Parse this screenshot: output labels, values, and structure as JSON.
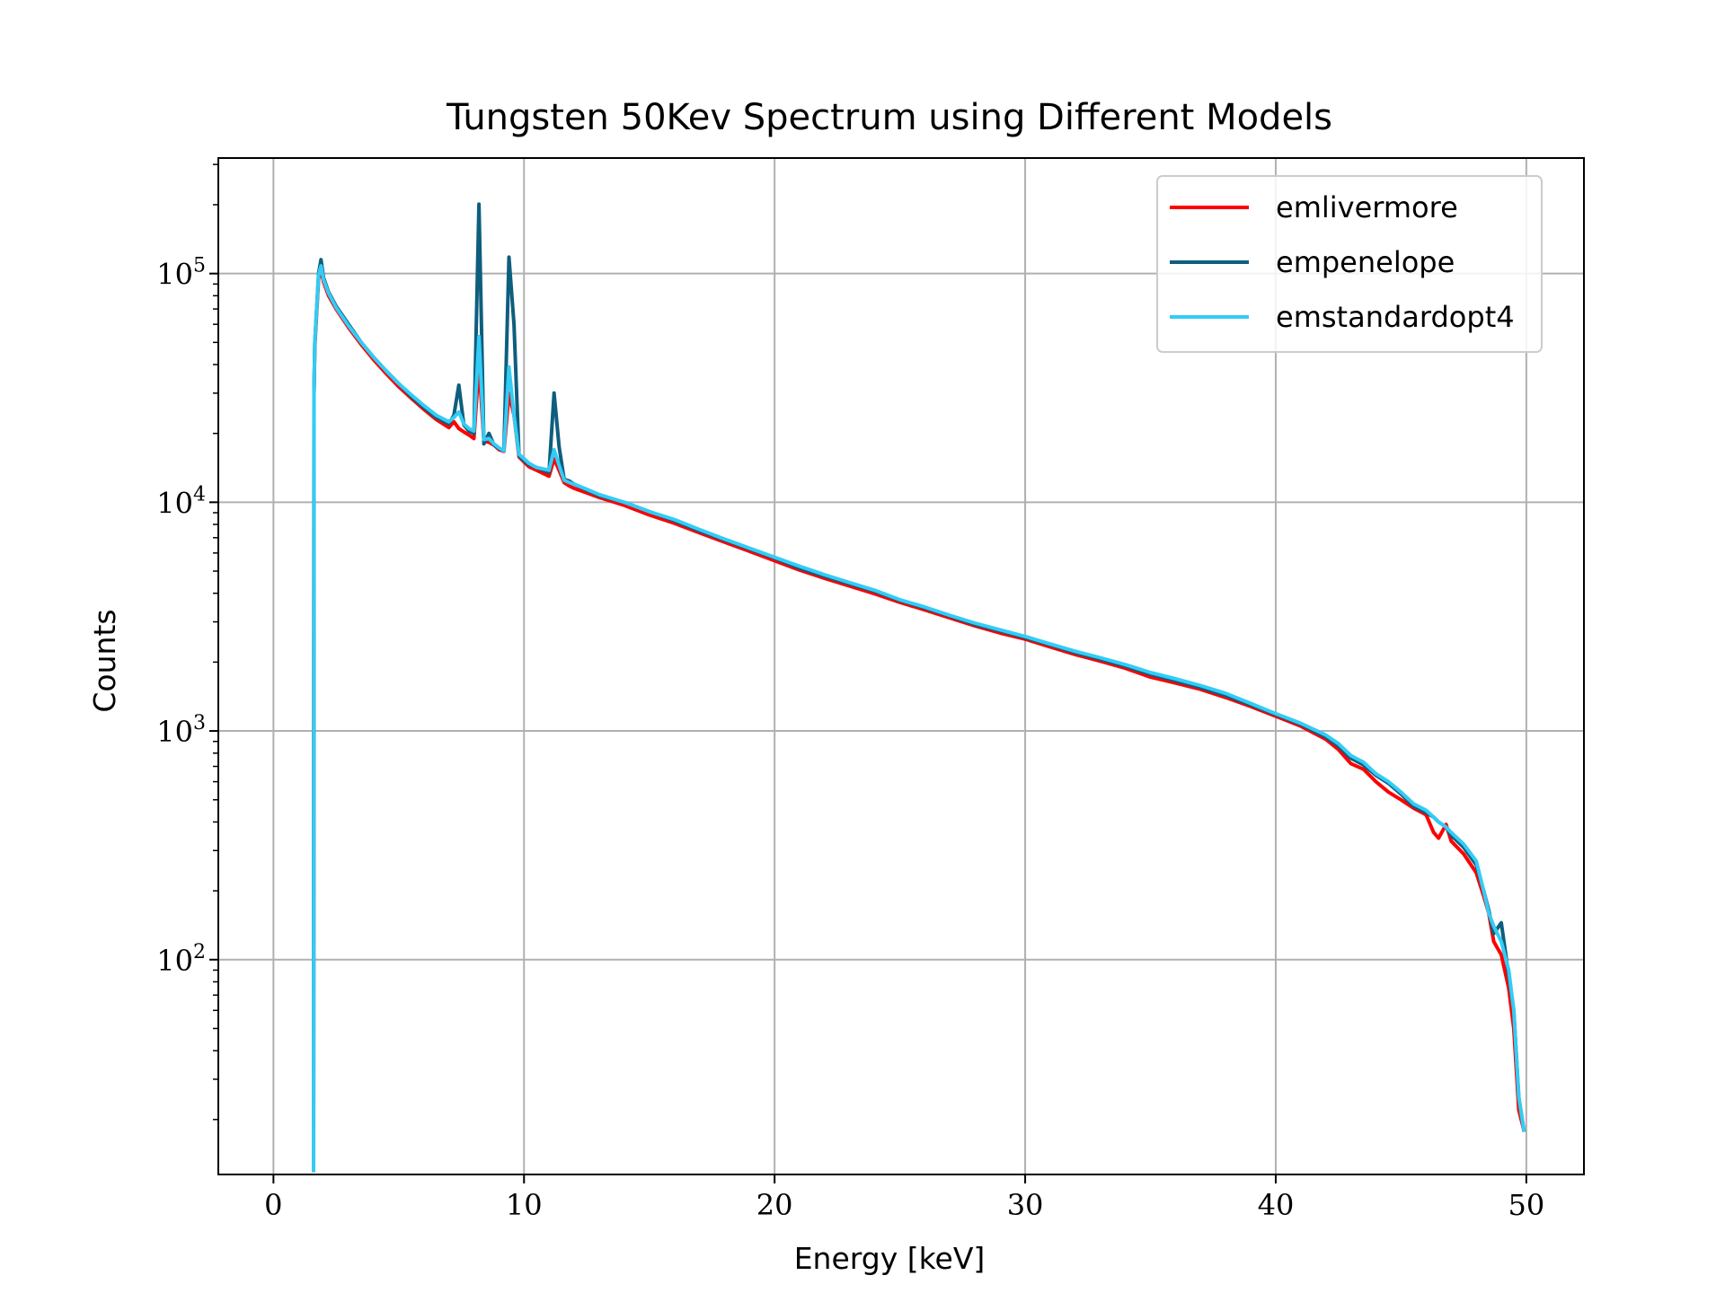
{
  "chart_data": {
    "type": "line",
    "title": "Tungsten 50Kev Spectrum using Different Models",
    "xlabel": "Energy [keV]",
    "ylabel": "Counts",
    "xscale": "linear",
    "yscale": "log",
    "xlim": [
      -2.2,
      52.3
    ],
    "ylim": [
      11.5,
      320000
    ],
    "xticks": [
      0,
      10,
      20,
      30,
      40,
      50
    ],
    "xtick_labels": [
      "0",
      "10",
      "20",
      "30",
      "40",
      "50"
    ],
    "yticks": [
      100,
      1000,
      10000,
      100000
    ],
    "ytick_labels": [
      {
        "base": "10",
        "exp": "2"
      },
      {
        "base": "10",
        "exp": "3"
      },
      {
        "base": "10",
        "exp": "4"
      },
      {
        "base": "10",
        "exp": "5"
      }
    ],
    "grid": true,
    "legend_position": "upper-right",
    "series": [
      {
        "name": "emlivermore",
        "color": "#ff0000",
        "x": [
          1.6,
          1.62,
          1.65,
          1.8,
          1.9,
          2.0,
          2.2,
          2.5,
          3,
          3.5,
          4,
          4.5,
          5,
          5.5,
          6,
          6.5,
          7,
          7.2,
          7.4,
          7.6,
          7.8,
          8.0,
          8.2,
          8.4,
          8.6,
          8.8,
          9.0,
          9.2,
          9.4,
          9.6,
          9.8,
          10.0,
          10.2,
          10.5,
          11,
          11.2,
          11.4,
          11.6,
          11.8,
          12,
          12.5,
          13,
          14,
          15,
          16,
          17,
          18,
          19,
          20,
          21,
          22,
          23,
          24,
          25,
          26,
          27,
          28,
          29,
          30,
          31,
          32,
          33,
          34,
          35,
          36,
          37,
          38,
          39,
          40,
          41,
          42,
          42.5,
          43,
          43.5,
          44,
          44.5,
          45,
          45.5,
          46,
          46.3,
          46.5,
          46.8,
          47,
          47.5,
          48,
          48.3,
          48.5,
          48.7,
          49,
          49.3,
          49.5,
          49.7,
          49.9
        ],
        "y": [
          12,
          30000,
          48000,
          95000,
          103000,
          92000,
          80000,
          70000,
          58000,
          49000,
          42000,
          36500,
          32000,
          28500,
          25500,
          23000,
          21200,
          22500,
          21000,
          20300,
          19700,
          19000,
          40000,
          18500,
          18300,
          17800,
          17000,
          16700,
          30000,
          24000,
          15800,
          15000,
          14300,
          13800,
          13000,
          15500,
          13800,
          12200,
          11800,
          11500,
          11000,
          10500,
          9700,
          8800,
          8100,
          7350,
          6700,
          6100,
          5550,
          5050,
          4650,
          4300,
          3980,
          3650,
          3380,
          3120,
          2880,
          2680,
          2520,
          2330,
          2160,
          2020,
          1880,
          1720,
          1620,
          1520,
          1400,
          1280,
          1160,
          1050,
          920,
          830,
          720,
          680,
          600,
          540,
          500,
          460,
          430,
          360,
          340,
          390,
          330,
          290,
          240,
          190,
          160,
          120,
          105,
          75,
          50,
          22,
          18
        ]
      },
      {
        "name": "empenelope",
        "color": "#0e5e7e",
        "x": [
          1.6,
          1.62,
          1.65,
          1.8,
          1.9,
          2.0,
          2.2,
          2.5,
          3,
          3.5,
          4,
          4.5,
          5,
          5.5,
          6,
          6.5,
          7,
          7.2,
          7.4,
          7.6,
          7.8,
          8.0,
          8.2,
          8.4,
          8.6,
          8.8,
          9.0,
          9.2,
          9.4,
          9.6,
          9.8,
          10.0,
          10.2,
          10.5,
          11,
          11.2,
          11.4,
          11.6,
          11.8,
          12,
          12.5,
          13,
          14,
          15,
          16,
          17,
          18,
          19,
          20,
          21,
          22,
          23,
          24,
          25,
          26,
          27,
          28,
          29,
          30,
          31,
          32,
          33,
          34,
          35,
          36,
          37,
          38,
          39,
          40,
          41,
          42,
          42.5,
          43,
          43.5,
          44,
          44.5,
          45,
          45.5,
          46,
          46.3,
          46.5,
          46.8,
          47,
          47.5,
          48,
          48.3,
          48.5,
          48.7,
          49,
          49.3,
          49.5,
          49.7,
          49.9
        ],
        "y": [
          12,
          30000,
          50000,
          100000,
          115000,
          96000,
          83000,
          72000,
          60000,
          50000,
          43000,
          37500,
          33000,
          29000,
          26000,
          23500,
          22000,
          24000,
          32500,
          21800,
          20500,
          20000,
          201000,
          18000,
          20000,
          17800,
          17200,
          16800,
          118000,
          60000,
          16000,
          15200,
          14600,
          14200,
          13500,
          30000,
          17500,
          12600,
          12400,
          12000,
          11300,
          10700,
          10000,
          9100,
          8300,
          7500,
          6850,
          6250,
          5700,
          5150,
          4750,
          4400,
          4080,
          3720,
          3450,
          3180,
          2920,
          2740,
          2560,
          2380,
          2200,
          2060,
          1920,
          1770,
          1660,
          1550,
          1430,
          1300,
          1180,
          1070,
          940,
          860,
          760,
          710,
          640,
          590,
          530,
          470,
          440,
          420,
          400,
          380,
          350,
          310,
          260,
          200,
          165,
          130,
          145,
          85,
          60,
          25,
          18
        ]
      },
      {
        "name": "emstandardopt4",
        "color": "#33ccf5",
        "x": [
          1.6,
          1.62,
          1.65,
          1.8,
          1.9,
          2.0,
          2.2,
          2.5,
          3,
          3.5,
          4,
          4.5,
          5,
          5.5,
          6,
          6.5,
          7,
          7.2,
          7.4,
          7.6,
          7.8,
          8.0,
          8.2,
          8.4,
          8.6,
          8.8,
          9.0,
          9.2,
          9.4,
          9.6,
          9.8,
          10.0,
          10.2,
          10.5,
          11,
          11.2,
          11.4,
          11.6,
          11.8,
          12,
          12.5,
          13,
          14,
          15,
          16,
          17,
          18,
          19,
          20,
          21,
          22,
          23,
          24,
          25,
          26,
          27,
          28,
          29,
          30,
          31,
          32,
          33,
          34,
          35,
          36,
          37,
          38,
          39,
          40,
          41,
          42,
          42.5,
          43,
          43.5,
          44,
          44.5,
          45,
          45.5,
          46,
          46.3,
          46.5,
          46.8,
          47,
          47.5,
          48,
          48.3,
          48.5,
          48.7,
          49,
          49.3,
          49.5,
          49.7,
          49.9
        ],
        "y": [
          12,
          30000,
          50000,
          98000,
          108000,
          94000,
          82000,
          71000,
          59000,
          50000,
          43000,
          37500,
          33000,
          29500,
          26500,
          24000,
          22500,
          23500,
          24800,
          22000,
          21000,
          20500,
          53000,
          18800,
          19000,
          18000,
          17300,
          16800,
          39000,
          24000,
          16200,
          15500,
          14800,
          14200,
          13800,
          17000,
          14500,
          12500,
          12200,
          12000,
          11400,
          10800,
          10000,
          9100,
          8400,
          7600,
          6900,
          6300,
          5750,
          5250,
          4820,
          4450,
          4120,
          3750,
          3480,
          3200,
          2960,
          2770,
          2590,
          2400,
          2230,
          2090,
          1950,
          1800,
          1690,
          1580,
          1460,
          1320,
          1190,
          1080,
          960,
          880,
          780,
          730,
          650,
          600,
          540,
          480,
          450,
          420,
          400,
          380,
          360,
          320,
          270,
          200,
          160,
          140,
          120,
          90,
          60,
          25,
          18
        ]
      }
    ]
  }
}
